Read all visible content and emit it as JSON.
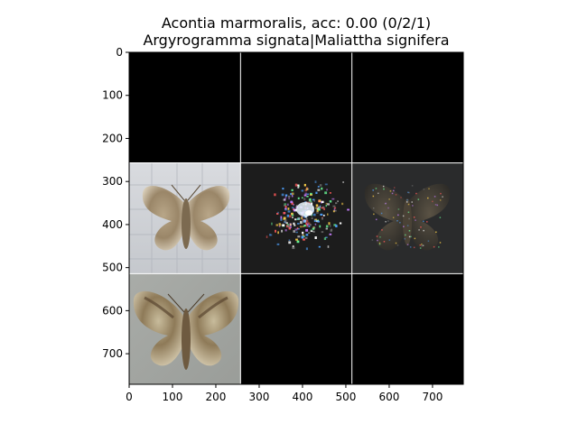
{
  "figure": {
    "title_line1": "Acontia marmoralis, acc: 0.00 (0/2/1)",
    "title_line2": "Argyrogramma signata|Maliattha signifera"
  },
  "chart_data": {
    "type": "image-grid",
    "title": "Acontia marmoralis, acc: 0.00 (0/2/1)\nArgyrogramma signata|Maliattha signifera",
    "xlabel": "",
    "ylabel": "",
    "xlim": [
      0,
      771
    ],
    "ylim": [
      771,
      0
    ],
    "xticks": [
      0,
      100,
      200,
      300,
      400,
      500,
      600,
      700
    ],
    "yticks": [
      0,
      100,
      200,
      300,
      400,
      500,
      600,
      700
    ],
    "grid": {
      "rows": 3,
      "cols": 3,
      "tile_size": 257
    },
    "tiles": [
      {
        "row": 0,
        "col": 0,
        "content": "blank"
      },
      {
        "row": 0,
        "col": 1,
        "content": "blank"
      },
      {
        "row": 0,
        "col": 2,
        "content": "blank"
      },
      {
        "row": 1,
        "col": 0,
        "content": "moth-photo-light"
      },
      {
        "row": 1,
        "col": 1,
        "content": "noise-attribution-map"
      },
      {
        "row": 1,
        "col": 2,
        "content": "dark-overlay-moth"
      },
      {
        "row": 2,
        "col": 0,
        "content": "moth-photo-gray"
      },
      {
        "row": 2,
        "col": 1,
        "content": "blank"
      },
      {
        "row": 2,
        "col": 2,
        "content": "blank"
      }
    ],
    "colors": {
      "blank": "#000000",
      "separator": "#ffffff"
    }
  }
}
